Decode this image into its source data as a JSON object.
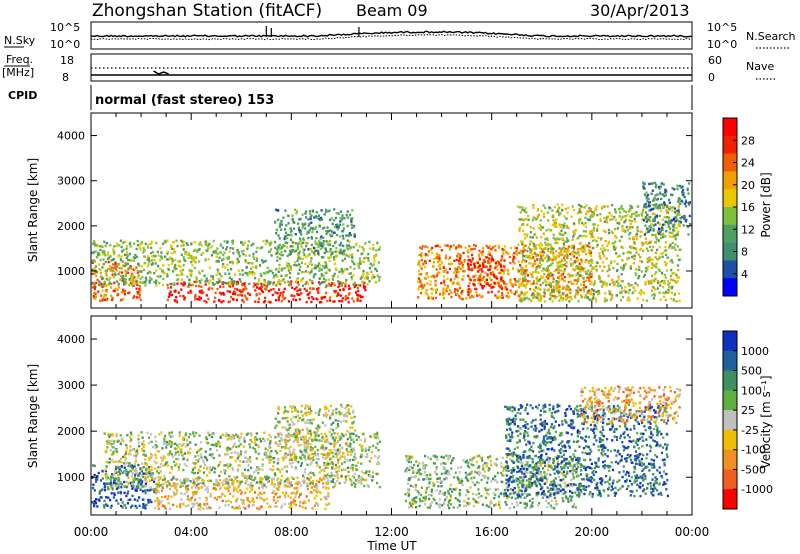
{
  "header": {
    "station": "Zhongshan Station (fitACF)",
    "beam": "Beam 09",
    "date": "30/Apr/2013"
  },
  "noise_panel": {
    "left_label": "N.Sky",
    "right_label": "N.Search",
    "left_ticks": [
      "10^5",
      "10^0"
    ],
    "right_ticks": [
      "10^5",
      "10^0"
    ]
  },
  "freq_panel": {
    "left_label_1": "Freq.",
    "left_label_2": "[MHz]",
    "right_label": "Nave",
    "left_ticks": [
      "18",
      "8"
    ],
    "right_ticks": [
      "60",
      "0"
    ]
  },
  "cpid": {
    "label": "CPID",
    "text": "normal (fast stereo) 153"
  },
  "x_axis": {
    "title": "Time UT",
    "ticks": [
      "00:00",
      "04:00",
      "08:00",
      "12:00",
      "16:00",
      "20:00",
      "00:00"
    ]
  },
  "colors": {
    "power_scale": [
      "#0000ff",
      "#1f4fa8",
      "#3f8f6f",
      "#4fa060",
      "#80c040",
      "#e8c800",
      "#f0a000",
      "#f06000",
      "#f02000",
      "#ff0000"
    ],
    "velocity_scale": [
      "#ff0000",
      "#f06020",
      "#f09020",
      "#f0c000",
      "#c0c0c0",
      "#60b040",
      "#3f9060",
      "#2060a0",
      "#1030c0"
    ]
  },
  "chart_data": [
    {
      "type": "heatmap",
      "title": "",
      "xlabel": "Time UT",
      "ylabel": "Slant Range [km]",
      "x_range_hours": [
        0,
        24
      ],
      "ylim": [
        180,
        4500
      ],
      "y_ticks": [
        "1000",
        "2000",
        "3000",
        "4000"
      ],
      "colorbar": {
        "label": "Power [dB]",
        "ticks": [
          "4",
          "8",
          "12",
          "16",
          "20",
          "24",
          "28"
        ],
        "range": [
          0,
          32
        ]
      },
      "scatter_regions": [
        {
          "t0": 0.0,
          "t1": 2.0,
          "r0": 350,
          "r1": 1250,
          "level": 24
        },
        {
          "t0": 3.0,
          "t1": 11.0,
          "r0": 330,
          "r1": 800,
          "level": 28
        },
        {
          "t0": 0.0,
          "t1": 11.5,
          "r0": 700,
          "r1": 1700,
          "level": 14
        },
        {
          "t0": 7.3,
          "t1": 10.5,
          "r0": 1400,
          "r1": 2400,
          "level": 10
        },
        {
          "t0": 13.0,
          "t1": 20.0,
          "r0": 400,
          "r1": 1600,
          "level": 22
        },
        {
          "t0": 15.0,
          "t1": 16.5,
          "r0": 600,
          "r1": 1300,
          "level": 28
        },
        {
          "t0": 17.0,
          "t1": 23.5,
          "r0": 350,
          "r1": 2500,
          "level": 16
        },
        {
          "t0": 22.0,
          "t1": 23.9,
          "r0": 1800,
          "r1": 3000,
          "level": 8
        }
      ]
    },
    {
      "type": "heatmap",
      "title": "",
      "xlabel": "Time UT",
      "ylabel": "Slant Range [km]",
      "x_range_hours": [
        0,
        24
      ],
      "ylim": [
        180,
        4500
      ],
      "y_ticks": [
        "1000",
        "2000",
        "3000",
        "4000"
      ],
      "colorbar": {
        "label": "Velocity [m s⁻¹]",
        "ticks": [
          "1000",
          "500",
          "100",
          "25",
          "-25",
          "-100",
          "-500",
          "-1000"
        ],
        "range": [
          -1200,
          1200
        ]
      },
      "scatter_regions": [
        {
          "t0": 0.0,
          "t1": 2.5,
          "r0": 350,
          "r1": 1300,
          "level": 900
        },
        {
          "t0": 2.5,
          "t1": 9.5,
          "r0": 330,
          "r1": 1000,
          "level": -300
        },
        {
          "t0": 0.5,
          "t1": 11.5,
          "r0": 800,
          "r1": 2000,
          "level": 80
        },
        {
          "t0": 7.3,
          "t1": 10.5,
          "r0": 1400,
          "r1": 2600,
          "level": 0
        },
        {
          "t0": 12.5,
          "t1": 19.5,
          "r0": 350,
          "r1": 1500,
          "level": 200
        },
        {
          "t0": 16.5,
          "t1": 23.0,
          "r0": 600,
          "r1": 2600,
          "level": 700
        },
        {
          "t0": 19.5,
          "t1": 23.5,
          "r0": 2200,
          "r1": 3000,
          "level": -400
        }
      ]
    }
  ]
}
